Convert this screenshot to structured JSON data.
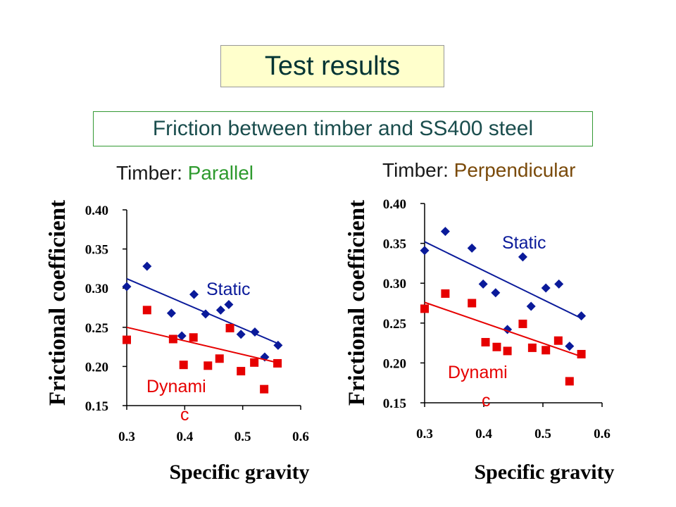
{
  "title": "Test results",
  "subtitle": "Friction between timber and SS400 steel",
  "colors": {
    "static": "#0a1a9a",
    "dynamic": "#e60000",
    "parallel": "#2e9a2e",
    "perpendicular": "#7a4a0a"
  },
  "chart_data": [
    {
      "type": "scatter",
      "title_prefix": "Timber: ",
      "title_word": "Parallel",
      "xlabel": "Specific gravity",
      "ylabel": "Frictional coefficient",
      "xlim": [
        0.3,
        0.6
      ],
      "ylim": [
        0.15,
        0.4
      ],
      "xticks": [
        "0.3",
        "0.4",
        "0.5",
        "0.6"
      ],
      "yticks": [
        "0.40",
        "0.35",
        "0.30",
        "0.25",
        "0.20",
        "0.15"
      ],
      "series": [
        {
          "name": "Static",
          "marker": "diamond",
          "points": [
            [
              0.3,
              0.302
            ],
            [
              0.335,
              0.328
            ],
            [
              0.377,
              0.268
            ],
            [
              0.395,
              0.239
            ],
            [
              0.416,
              0.292
            ],
            [
              0.436,
              0.267
            ],
            [
              0.462,
              0.272
            ],
            [
              0.476,
              0.279
            ],
            [
              0.497,
              0.241
            ],
            [
              0.521,
              0.244
            ],
            [
              0.538,
              0.212
            ],
            [
              0.561,
              0.227
            ]
          ],
          "trend": [
            [
              0.3,
              0.312
            ],
            [
              0.565,
              0.228
            ]
          ]
        },
        {
          "name": "Dynamic",
          "label_lines": [
            "Dynami",
            "c"
          ],
          "marker": "square",
          "points": [
            [
              0.3,
              0.234
            ],
            [
              0.335,
              0.272
            ],
            [
              0.38,
              0.235
            ],
            [
              0.398,
              0.202
            ],
            [
              0.415,
              0.237
            ],
            [
              0.44,
              0.201
            ],
            [
              0.46,
              0.21
            ],
            [
              0.478,
              0.249
            ],
            [
              0.497,
              0.194
            ],
            [
              0.52,
              0.205
            ],
            [
              0.537,
              0.171
            ],
            [
              0.56,
              0.204
            ]
          ],
          "trend": [
            [
              0.3,
              0.25
            ],
            [
              0.565,
              0.204
            ]
          ]
        }
      ]
    },
    {
      "type": "scatter",
      "title_prefix": "Timber: ",
      "title_word": "Perpendicular",
      "xlabel": "Specific gravity",
      "ylabel": "Frictional coefficient",
      "xlim": [
        0.3,
        0.6
      ],
      "ylim": [
        0.15,
        0.4
      ],
      "xticks": [
        "0.3",
        "0.4",
        "0.5",
        "0.6"
      ],
      "yticks": [
        "0.40",
        "0.35",
        "0.30",
        "0.25",
        "0.20",
        "0.15"
      ],
      "series": [
        {
          "name": "Static",
          "marker": "diamond",
          "points": [
            [
              0.3,
              0.341
            ],
            [
              0.335,
              0.365
            ],
            [
              0.38,
              0.344
            ],
            [
              0.399,
              0.299
            ],
            [
              0.42,
              0.288
            ],
            [
              0.44,
              0.242
            ],
            [
              0.466,
              0.333
            ],
            [
              0.48,
              0.271
            ],
            [
              0.505,
              0.294
            ],
            [
              0.527,
              0.299
            ],
            [
              0.545,
              0.221
            ],
            [
              0.565,
              0.259
            ]
          ],
          "trend": [
            [
              0.3,
              0.352
            ],
            [
              0.565,
              0.256
            ]
          ]
        },
        {
          "name": "Dynamic",
          "label_lines": [
            "Dynami",
            "c"
          ],
          "marker": "square",
          "points": [
            [
              0.3,
              0.268
            ],
            [
              0.335,
              0.287
            ],
            [
              0.38,
              0.275
            ],
            [
              0.403,
              0.226
            ],
            [
              0.422,
              0.22
            ],
            [
              0.44,
              0.215
            ],
            [
              0.466,
              0.249
            ],
            [
              0.482,
              0.219
            ],
            [
              0.505,
              0.216
            ],
            [
              0.526,
              0.228
            ],
            [
              0.545,
              0.177
            ],
            [
              0.565,
              0.211
            ]
          ],
          "trend": [
            [
              0.3,
              0.276
            ],
            [
              0.565,
              0.208
            ]
          ]
        }
      ]
    }
  ]
}
